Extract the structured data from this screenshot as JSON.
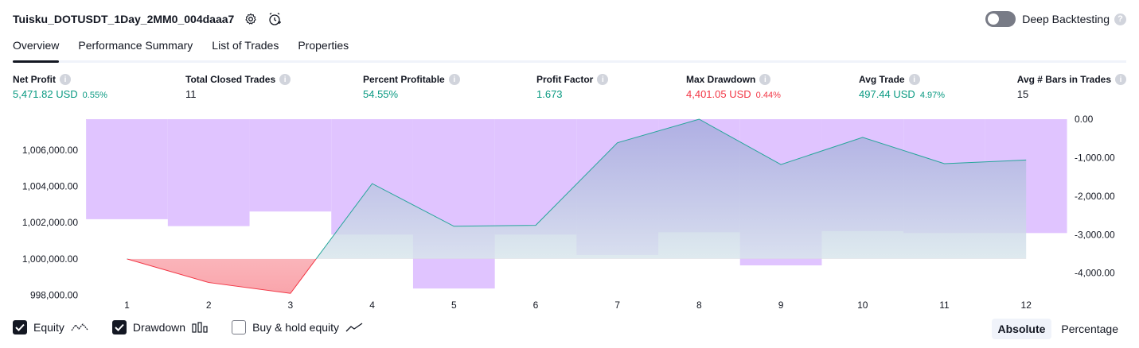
{
  "header": {
    "strategy_name": "Tuisku_DOTUSDT_1Day_2MM0_004daaa7",
    "deep_backtesting_label": "Deep Backtesting",
    "help_glyph": "?"
  },
  "tabs": [
    {
      "label": "Overview",
      "active": true
    },
    {
      "label": "Performance Summary",
      "active": false
    },
    {
      "label": "List of Trades",
      "active": false
    },
    {
      "label": "Properties",
      "active": false
    }
  ],
  "metrics": [
    {
      "label": "Net Profit",
      "value": "5,471.82 USD",
      "pct": "0.55%",
      "tone": "pos"
    },
    {
      "label": "Total Closed Trades",
      "value": "11",
      "pct": "",
      "tone": "plain"
    },
    {
      "label": "Percent Profitable",
      "value": "54.55%",
      "pct": "",
      "tone": "pos"
    },
    {
      "label": "Profit Factor",
      "value": "1.673",
      "pct": "",
      "tone": "pos"
    },
    {
      "label": "Max Drawdown",
      "value": "4,401.05 USD",
      "pct": "0.44%",
      "tone": "neg"
    },
    {
      "label": "Avg Trade",
      "value": "497.44 USD",
      "pct": "4.97%",
      "tone": "pos"
    },
    {
      "label": "Avg # Bars in Trades",
      "value": "15",
      "pct": "",
      "tone": "plain"
    }
  ],
  "colors": {
    "profit": "#089981",
    "loss": "#f23645",
    "equity_line": "#26a69a",
    "drawdown_bar": "#e0c4ff",
    "equity_fill_above": "#9fa8da",
    "equity_fill_base": "#e6f5f0",
    "equity_fill_below": "#ffd9dc"
  },
  "chart_data": {
    "type": "line",
    "x": [
      1,
      2,
      3,
      4,
      5,
      6,
      7,
      8,
      9,
      10,
      11,
      12
    ],
    "equity": {
      "name": "Equity",
      "x": [
        1,
        2,
        3,
        4,
        5,
        6,
        7,
        8,
        9,
        10,
        11,
        12
      ],
      "values": [
        1000000,
        998700,
        998100,
        1004150,
        1001800,
        1001850,
        1006400,
        1007700,
        1005200,
        1006700,
        1005250,
        1005450
      ],
      "baseline": 1000000
    },
    "drawdown": {
      "name": "Drawdown",
      "type": "bar",
      "x": [
        0,
        1,
        2,
        3,
        4,
        5,
        6,
        7,
        8,
        9,
        10,
        11,
        12
      ],
      "values": [
        0,
        -2600,
        -2780,
        -2400,
        -3000,
        -4401.05,
        -3000,
        -3530,
        -2940,
        -3800,
        -2910,
        -2960,
        -2960
      ]
    },
    "y_left": {
      "ticks": [
        "1,006,000.00",
        "1,004,000.00",
        "1,002,000.00",
        "1,000,000.00",
        "998,000.00"
      ],
      "tick_values": [
        1006000,
        1004000,
        1002000,
        1000000,
        998000
      ],
      "range": [
        997630,
        1007700
      ]
    },
    "y_right": {
      "ticks": [
        "0.00",
        "-1,000.00",
        "-2,000.00",
        "-3,000.00",
        "-4,000.00"
      ],
      "tick_values": [
        0,
        -1000,
        -2000,
        -3000,
        -4000
      ],
      "range": [
        -4750,
        0
      ]
    },
    "x_ticks": [
      "1",
      "2",
      "3",
      "4",
      "5",
      "6",
      "7",
      "8",
      "9",
      "10",
      "11",
      "12"
    ]
  },
  "legend": {
    "items": [
      {
        "label": "Equity",
        "checked": true,
        "icon": "equity-line-icon"
      },
      {
        "label": "Drawdown",
        "checked": true,
        "icon": "drawdown-bars-icon"
      },
      {
        "label": "Buy & hold equity",
        "checked": false,
        "icon": "buy-hold-line-icon"
      }
    ]
  },
  "mode": {
    "options": [
      "Absolute",
      "Percentage"
    ],
    "selected": "Absolute"
  }
}
